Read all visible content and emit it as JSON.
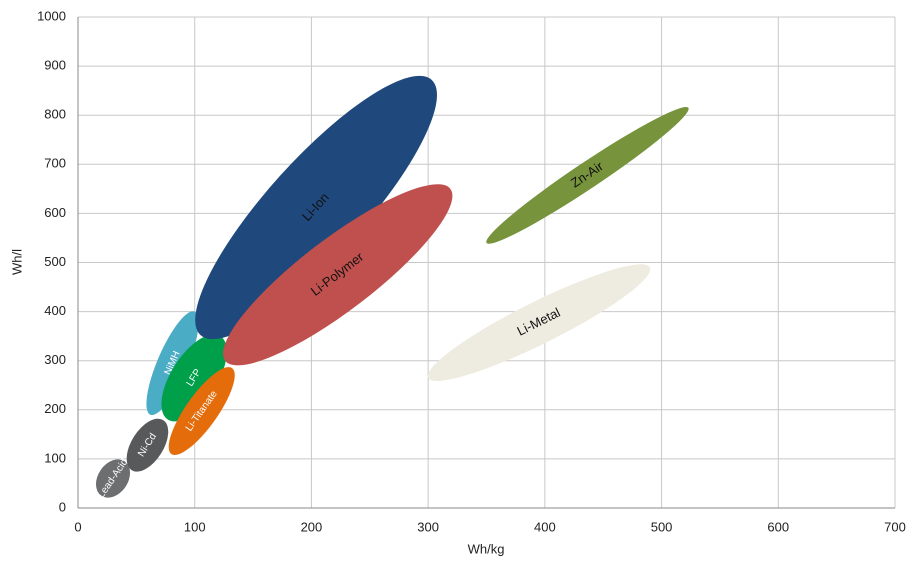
{
  "chart_data": {
    "type": "ellipse",
    "x_label": "Wh/kg",
    "y_label": "Wh/l",
    "xlim": [
      0,
      700
    ],
    "xticks": [
      0,
      100,
      200,
      300,
      400,
      500,
      600,
      700
    ],
    "ylim": [
      0,
      1000
    ],
    "yticks": [
      0,
      100,
      200,
      300,
      400,
      500,
      600,
      700,
      800,
      900,
      1000
    ],
    "grid": true,
    "series": [
      {
        "name": "Lead-Acid",
        "color": "#6d6e70",
        "x": [
          20,
          40
        ],
        "y": [
          25,
          95
        ]
      },
      {
        "name": "Ni-Cd",
        "color": "#58595b",
        "x": [
          46,
          73
        ],
        "y": [
          77,
          179
        ]
      },
      {
        "name": "NiMH",
        "color": "#4bacc6",
        "x": [
          62,
          100
        ],
        "y": [
          190,
          400
        ]
      },
      {
        "name": "LFP",
        "color": "#00a04a",
        "x": [
          77,
          122
        ],
        "y": [
          180,
          350
        ]
      },
      {
        "name": "Li-Titanate",
        "color": "#e46c0a",
        "x": [
          80,
          132
        ],
        "y": [
          110,
          285
        ]
      },
      {
        "name": "Li-Ion",
        "color": "#1f497d",
        "x": [
          105,
          303
        ],
        "y": [
          352,
          872
        ]
      },
      {
        "name": "Li-Polymer",
        "color": "#c0504d",
        "x": [
          126,
          319
        ],
        "y": [
          300,
          650
        ]
      },
      {
        "name": "Li-Metal",
        "color": "#eeece1",
        "x": [
          300,
          490
        ],
        "y": [
          265,
          490
        ]
      },
      {
        "name": "Zn-Air",
        "color": "#77933c",
        "x": [
          350,
          523
        ],
        "y": [
          540,
          815
        ]
      }
    ]
  }
}
